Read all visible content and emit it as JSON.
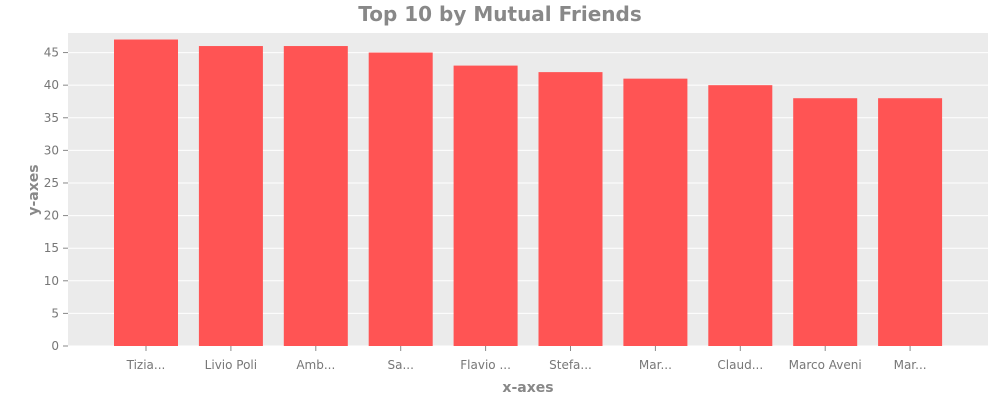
{
  "chart_data": {
    "type": "bar",
    "title": "Top 10 by Mutual Friends",
    "xlabel": "x-axes",
    "ylabel": "y-axes",
    "categories": [
      "Tizia...",
      "Livio Poli",
      "Amb...",
      "Sa...",
      "Flavio ...",
      "Stefa...",
      "Mar...",
      "Claud...",
      "Marco Aveni",
      "Mar..."
    ],
    "values": [
      47,
      46,
      46,
      45,
      43,
      42,
      41,
      40,
      38,
      38
    ],
    "ylim": [
      0,
      48
    ],
    "yticks": [
      "0",
      "5",
      "10",
      "15",
      "20",
      "25",
      "30",
      "35",
      "40",
      "45"
    ],
    "grid": true,
    "legend": "none"
  },
  "colors": {
    "bar": "#ff5454",
    "plot_background": "#ebebeb",
    "grid": "#ffffff"
  }
}
